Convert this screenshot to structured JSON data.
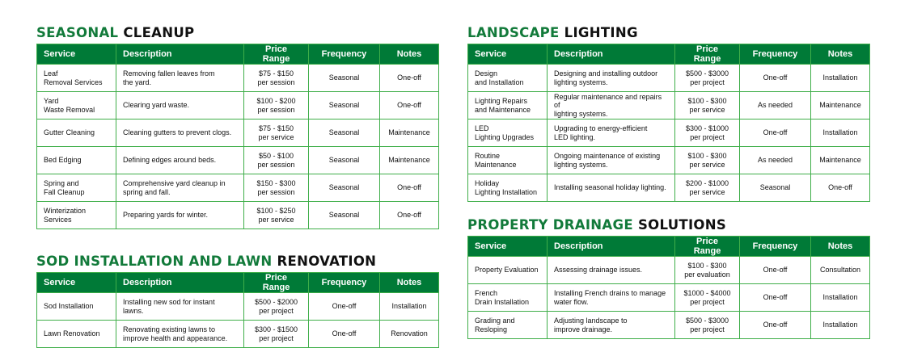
{
  "columns": [
    "Service",
    "Description",
    "Price Range",
    "Frequency",
    "Notes"
  ],
  "sections": [
    {
      "title_green": "SEASONAL",
      "title_black": "CLEANUP",
      "rows": [
        [
          "Leaf\nRemoval Services",
          "Removing fallen leaves from\nthe yard.",
          "$75 - $150\nper session",
          "Seasonal",
          "One-off"
        ],
        [
          "Yard\nWaste Removal",
          "Clearing yard waste.",
          "$100 - $200\nper session",
          "Seasonal",
          "One-off"
        ],
        [
          "Gutter Cleaning",
          "Cleaning gutters to prevent clogs.",
          "$75 - $150\nper service",
          "Seasonal",
          "Maintenance"
        ],
        [
          "Bed Edging",
          "Defining edges around beds.",
          "$50 - $100\nper session",
          "Seasonal",
          "Maintenance"
        ],
        [
          "Spring and\nFall Cleanup",
          "Comprehensive yard cleanup in\nspring and fall.",
          "$150 - $300\nper session",
          "Seasonal",
          "One-off"
        ],
        [
          "Winterization\nServices",
          "Preparing yards for winter.",
          "$100 - $250\nper service",
          "Seasonal",
          "One-off"
        ]
      ]
    },
    {
      "title_green": "SOD INSTALLATION AND LAWN",
      "title_black": "RENOVATION",
      "rows": [
        [
          "Sod Installation",
          "Installing new sod for instant lawns.",
          "$500 - $2000\nper project",
          "One-off",
          "Installation"
        ],
        [
          "Lawn Renovation",
          "Renovating existing lawns to\nimprove health and appearance.",
          "$300 - $1500\nper project",
          "One-off",
          "Renovation"
        ]
      ]
    },
    {
      "title_green": "LANDSCAPE",
      "title_black": "LIGHTING",
      "rows": [
        [
          "Design\nand Installation",
          "Designing and installing outdoor\nlighting systems.",
          "$500 - $3000\nper project",
          "One-off",
          "Installation"
        ],
        [
          "Lighting Repairs\nand Maintenance",
          "Regular maintenance and repairs of\nlighting systems.",
          "$100 - $300\nper service",
          "As needed",
          "Maintenance"
        ],
        [
          "LED\nLighting Upgrades",
          "Upgrading to energy-efficient\nLED lighting.",
          "$300 - $1000\nper project",
          "One-off",
          "Installation"
        ],
        [
          "Routine\nMaintenance",
          "Ongoing maintenance of existing\nlighting systems.",
          "$100 - $300\nper service",
          "As needed",
          "Maintenance"
        ],
        [
          "Holiday\nLighting Installation",
          "Installing seasonal holiday lighting.",
          "$200 - $1000\nper service",
          "Seasonal",
          "One-off"
        ]
      ]
    },
    {
      "title_green": "PROPERTY DRAINAGE",
      "title_black": "SOLUTIONS",
      "rows": [
        [
          "Property Evaluation",
          "Assessing drainage issues.",
          "$100 - $300\nper evaluation",
          "One-off",
          "Consultation"
        ],
        [
          "French\nDrain Installation",
          "Installing French drains to manage\nwater flow.",
          "$1000 - $4000\nper project",
          "One-off",
          "Installation"
        ],
        [
          "Grading and\nResloping",
          "Adjusting landscape to\nimprove drainage.",
          "$500 - $3000\nper project",
          "One-off",
          "Installation"
        ]
      ]
    }
  ]
}
